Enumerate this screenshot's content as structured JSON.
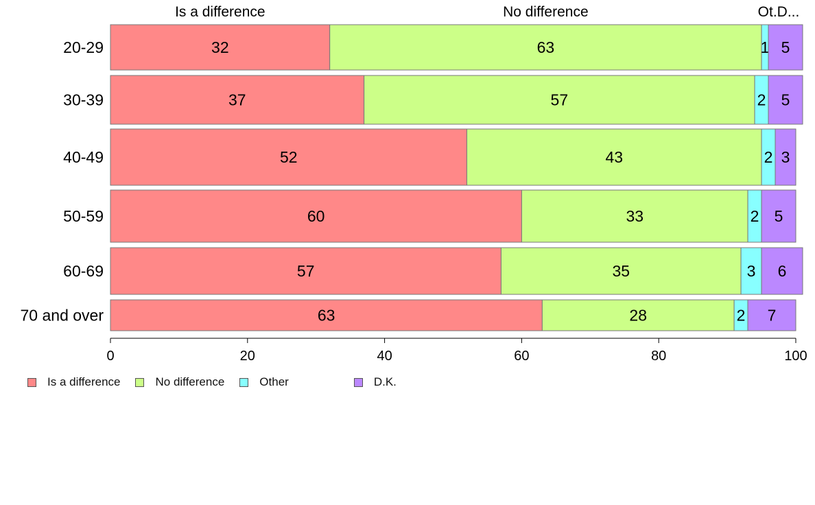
{
  "chart_data": {
    "type": "bar",
    "orientation": "horizontal",
    "stacked": true,
    "categories": [
      "20-29",
      "30-39",
      "40-49",
      "50-59",
      "60-69",
      "70 and over"
    ],
    "series": [
      {
        "name": "Is a difference",
        "color": "#ff8888",
        "values": [
          32,
          37,
          52,
          60,
          57,
          63
        ]
      },
      {
        "name": "No difference",
        "color": "#ccff88",
        "values": [
          63,
          57,
          43,
          33,
          35,
          28
        ]
      },
      {
        "name": "Other",
        "color": "#88ffff",
        "values": [
          1,
          2,
          2,
          2,
          3,
          2
        ]
      },
      {
        "name": "D.K.",
        "color": "#bb88ff",
        "values": [
          5,
          5,
          3,
          5,
          6,
          7
        ]
      }
    ],
    "top_labels": [
      "Is a difference",
      "No difference",
      "Ot.D..."
    ],
    "xlim": [
      0,
      100
    ],
    "xticks": [
      0,
      20,
      40,
      60,
      80,
      100
    ],
    "legend_position": "bottom-left",
    "grid": false
  }
}
